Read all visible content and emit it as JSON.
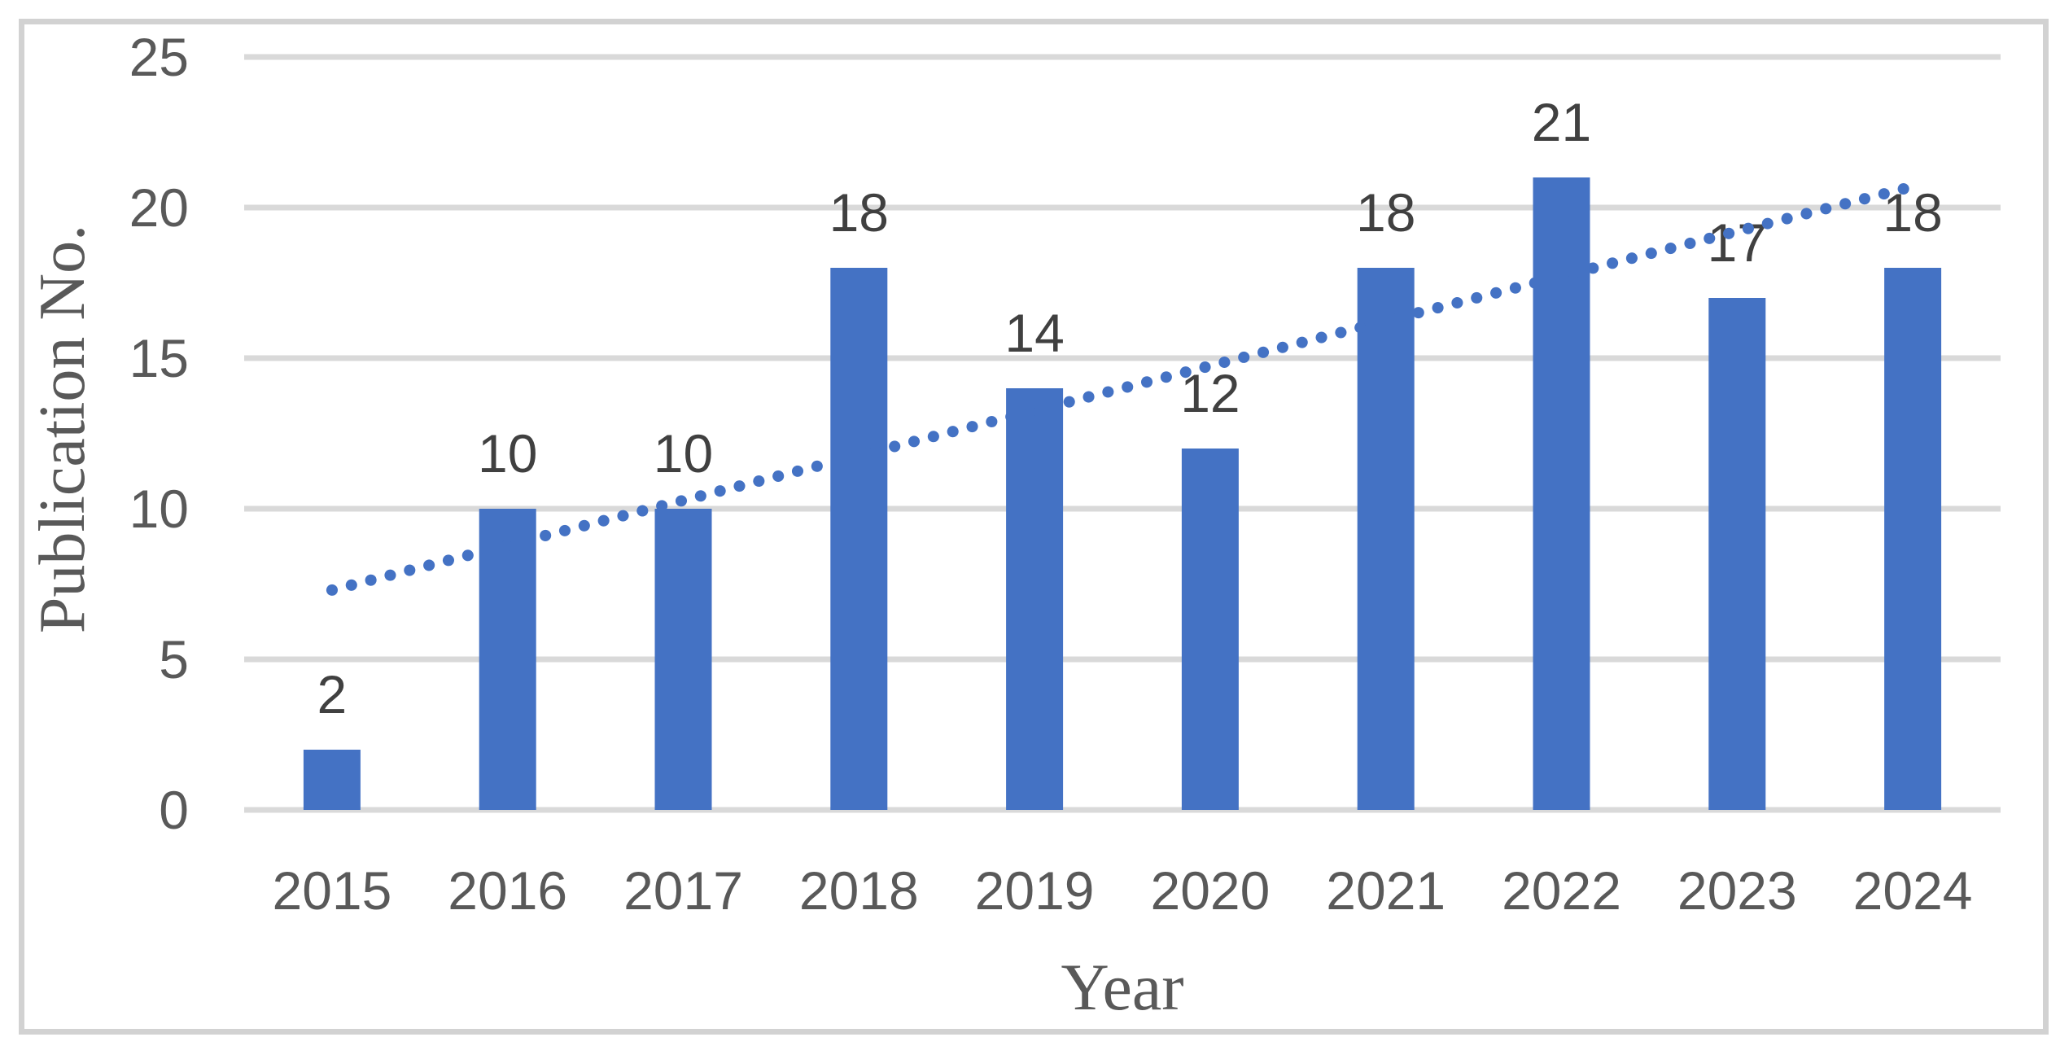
{
  "chart_data": {
    "type": "bar",
    "title": "",
    "xlabel": "Year",
    "ylabel": "Publication No.",
    "categories": [
      "2015",
      "2016",
      "2017",
      "2018",
      "2019",
      "2020",
      "2021",
      "2022",
      "2023",
      "2024"
    ],
    "values": [
      2,
      10,
      10,
      18,
      14,
      12,
      18,
      21,
      17,
      18
    ],
    "data_labels": [
      "2",
      "10",
      "10",
      "18",
      "14",
      "12",
      "18",
      "21",
      "17",
      "18"
    ],
    "ylim": [
      0,
      25
    ],
    "ytick_interval": 5,
    "ytick_labels": [
      "0",
      "5",
      "10",
      "15",
      "20",
      "25"
    ],
    "grid": "horizontal",
    "legend": "none",
    "trendline": {
      "type": "linear",
      "style": "dotted",
      "start_value": 7.3,
      "end_value": 20.7
    }
  },
  "colors": {
    "bar_fill": "#4472C4",
    "trendline": "#4472C4",
    "gridline": "#D9D9D9",
    "axis_line": "#D9D9D9",
    "tick_label_text": "#595959",
    "data_label_text": "#404040",
    "axis_title_text": "#595959",
    "figure_border": "#D2D2D2",
    "background": "#FFFFFF"
  }
}
